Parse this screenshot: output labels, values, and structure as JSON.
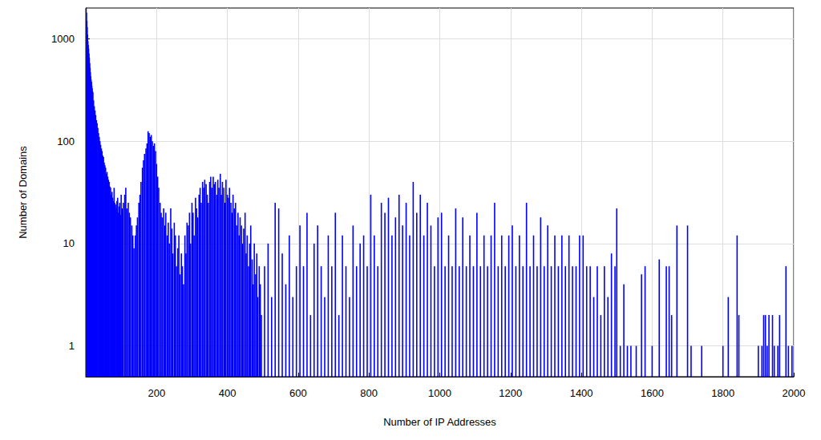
{
  "chart_data": {
    "type": "bar",
    "x_label": "Number of IP Addresses",
    "y_label": "Number of Domains",
    "color": "#0000ff",
    "log": "y",
    "grid": true,
    "xlim": [
      0,
      2000
    ],
    "xticks": [
      200,
      400,
      600,
      800,
      1000,
      1200,
      1400,
      1600,
      1800,
      2000
    ],
    "ylim": [
      0.5,
      2000
    ],
    "yticks": [
      1,
      10,
      100,
      1000
    ],
    "x": [
      1,
      2,
      3,
      4,
      5,
      6,
      7,
      8,
      9,
      10,
      11,
      12,
      13,
      14,
      15,
      16,
      17,
      18,
      19,
      20,
      22,
      24,
      26,
      28,
      30,
      32,
      34,
      36,
      38,
      40,
      42,
      44,
      46,
      48,
      50,
      52,
      54,
      56,
      58,
      60,
      62,
      64,
      66,
      68,
      70,
      72,
      74,
      76,
      78,
      80,
      82,
      84,
      86,
      88,
      90,
      92,
      94,
      96,
      98,
      100,
      103,
      106,
      110,
      113,
      116,
      120,
      123,
      126,
      130,
      133,
      136,
      140,
      143,
      146,
      150,
      153,
      156,
      160,
      163,
      166,
      170,
      173,
      176,
      179,
      182,
      185,
      188,
      191,
      194,
      197,
      200,
      203,
      206,
      210,
      213,
      216,
      220,
      223,
      226,
      230,
      233,
      236,
      240,
      243,
      246,
      250,
      253,
      256,
      260,
      263,
      266,
      270,
      273,
      276,
      280,
      283,
      286,
      290,
      293,
      296,
      300,
      303,
      306,
      310,
      313,
      316,
      320,
      323,
      326,
      330,
      333,
      336,
      340,
      343,
      346,
      350,
      353,
      356,
      360,
      363,
      366,
      370,
      373,
      376,
      380,
      383,
      386,
      390,
      393,
      396,
      400,
      403,
      406,
      410,
      413,
      416,
      420,
      423,
      426,
      430,
      433,
      436,
      440,
      443,
      446,
      450,
      453,
      456,
      460,
      463,
      466,
      470,
      473,
      476,
      480,
      483,
      486,
      490,
      493,
      496,
      505,
      515,
      525,
      535,
      545,
      555,
      565,
      575,
      585,
      595,
      605,
      615,
      625,
      635,
      645,
      655,
      665,
      675,
      685,
      695,
      705,
      715,
      725,
      735,
      745,
      755,
      765,
      775,
      785,
      795,
      805,
      815,
      825,
      835,
      845,
      855,
      865,
      875,
      885,
      895,
      905,
      915,
      925,
      935,
      945,
      955,
      965,
      975,
      985,
      995,
      1005,
      1015,
      1025,
      1035,
      1045,
      1055,
      1065,
      1075,
      1085,
      1095,
      1105,
      1115,
      1125,
      1135,
      1145,
      1155,
      1165,
      1175,
      1185,
      1195,
      1205,
      1215,
      1225,
      1235,
      1245,
      1255,
      1265,
      1275,
      1285,
      1295,
      1305,
      1315,
      1325,
      1335,
      1345,
      1355,
      1365,
      1375,
      1385,
      1395,
      1405,
      1415,
      1425,
      1435,
      1445,
      1455,
      1465,
      1475,
      1485,
      1495,
      1500,
      1510,
      1520,
      1530,
      1540,
      1555,
      1570,
      1580,
      1600,
      1620,
      1640,
      1648,
      1655,
      1670,
      1700,
      1710,
      1740,
      1800,
      1815,
      1840,
      1845,
      1900,
      1910,
      1915,
      1920,
      1925,
      1930,
      1940,
      1945,
      1955,
      1960,
      1978,
      1985,
      1995
    ],
    "values": [
      2000,
      1800,
      1500,
      1300,
      1100,
      950,
      870,
      800,
      720,
      650,
      580,
      520,
      470,
      430,
      400,
      380,
      350,
      330,
      310,
      300,
      250,
      220,
      200,
      180,
      160,
      150,
      135,
      120,
      110,
      100,
      92,
      85,
      80,
      72,
      70,
      62,
      58,
      55,
      48,
      50,
      45,
      42,
      40,
      36,
      35,
      30,
      32,
      28,
      26,
      35,
      25,
      24,
      22,
      26,
      28,
      20,
      23,
      25,
      19,
      30,
      22,
      25,
      30,
      35,
      22,
      25,
      20,
      18,
      15,
      12,
      9,
      12,
      15,
      18,
      25,
      30,
      40,
      55,
      65,
      75,
      85,
      95,
      125,
      120,
      110,
      115,
      100,
      90,
      95,
      80,
      60,
      45,
      35,
      25,
      20,
      18,
      22,
      15,
      20,
      12,
      16,
      10,
      22,
      14,
      8,
      16,
      12,
      6,
      9,
      12,
      5,
      8,
      6,
      4,
      12,
      8,
      16,
      15,
      20,
      10,
      25,
      20,
      12,
      28,
      22,
      18,
      30,
      35,
      25,
      40,
      35,
      42,
      38,
      30,
      25,
      40,
      45,
      35,
      45,
      38,
      40,
      30,
      42,
      35,
      48,
      30,
      40,
      35,
      25,
      42,
      30,
      28,
      35,
      25,
      20,
      30,
      22,
      25,
      15,
      20,
      12,
      18,
      15,
      10,
      14,
      20,
      8,
      12,
      6,
      10,
      15,
      7,
      4,
      10,
      5,
      8,
      3,
      6,
      4,
      2,
      6,
      10,
      3,
      25,
      22,
      8,
      4,
      12,
      3,
      6,
      15,
      6,
      20,
      2,
      10,
      15,
      6,
      3,
      12,
      6,
      20,
      2,
      12,
      6,
      3,
      15,
      6,
      10,
      12,
      6,
      30,
      12,
      6,
      25,
      20,
      28,
      12,
      18,
      30,
      15,
      25,
      12,
      40,
      20,
      30,
      12,
      25,
      15,
      6,
      18,
      20,
      6,
      12,
      6,
      22,
      6,
      18,
      6,
      12,
      6,
      20,
      6,
      12,
      6,
      12,
      25,
      6,
      12,
      6,
      12,
      15,
      6,
      12,
      6,
      25,
      6,
      12,
      6,
      18,
      6,
      15,
      6,
      12,
      6,
      12,
      6,
      12,
      6,
      6,
      12,
      12,
      6,
      6,
      3,
      6,
      2,
      6,
      3,
      8,
      6,
      22,
      1,
      4,
      1,
      1,
      1,
      5,
      6,
      1,
      7,
      6,
      6,
      2,
      15,
      15,
      1,
      1,
      1,
      3,
      12,
      2,
      1,
      1,
      2,
      2,
      1,
      2,
      2,
      1,
      1,
      2,
      6,
      1,
      1
    ]
  }
}
